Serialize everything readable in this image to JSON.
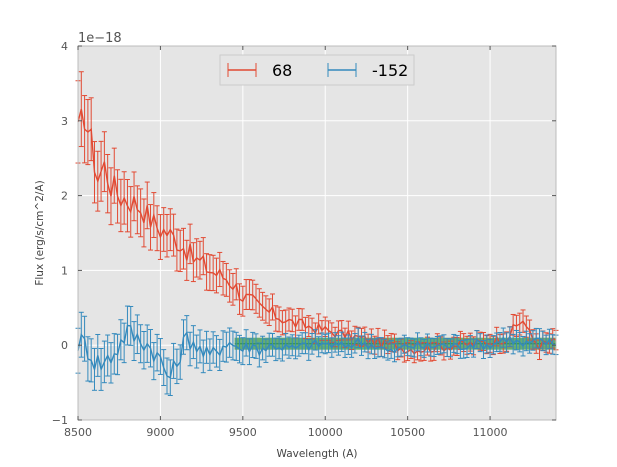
{
  "chart_data": {
    "type": "line",
    "title": "",
    "xlabel": "Wavelength (A)",
    "ylabel": "Flux (erg/s/cm^2/A)",
    "y_offset_label": "1e−18",
    "xlim": [
      8500,
      11400
    ],
    "ylim": [
      -1,
      4
    ],
    "xticks": [
      8500,
      9000,
      9500,
      10000,
      10500,
      11000
    ],
    "yticks": [
      -1,
      0,
      1,
      2,
      3,
      4
    ],
    "grid": true,
    "legend_position": "top-center",
    "background": "#e5e5e5",
    "band": {
      "x_start": 9450,
      "x_end": 11400,
      "y_low": -0.06,
      "y_high": 0.1,
      "color": "#3a9a4a",
      "line_color": "#2f8f4f"
    },
    "series": [
      {
        "name": "68",
        "color": "#e24a33",
        "knots": [
          [
            8500,
            2.75,
            0.55
          ],
          [
            8540,
            3.1,
            0.45
          ],
          [
            8580,
            2.7,
            0.42
          ],
          [
            8620,
            2.25,
            0.4
          ],
          [
            8660,
            2.4,
            0.4
          ],
          [
            8700,
            2.15,
            0.38
          ],
          [
            8750,
            2.0,
            0.35
          ],
          [
            8800,
            1.95,
            0.35
          ],
          [
            8850,
            1.9,
            0.32
          ],
          [
            8900,
            1.8,
            0.32
          ],
          [
            8950,
            1.65,
            0.3
          ],
          [
            9000,
            1.55,
            0.3
          ],
          [
            9050,
            1.5,
            0.28
          ],
          [
            9100,
            1.4,
            0.28
          ],
          [
            9150,
            1.3,
            0.27
          ],
          [
            9200,
            1.15,
            0.26
          ],
          [
            9250,
            1.1,
            0.25
          ],
          [
            9300,
            1.0,
            0.24
          ],
          [
            9350,
            0.95,
            0.23
          ],
          [
            9400,
            0.9,
            0.22
          ],
          [
            9450,
            0.8,
            0.21
          ],
          [
            9500,
            0.65,
            0.2
          ],
          [
            9550,
            0.6,
            0.2
          ],
          [
            9600,
            0.5,
            0.19
          ],
          [
            9650,
            0.45,
            0.18
          ],
          [
            9700,
            0.4,
            0.17
          ],
          [
            9750,
            0.35,
            0.16
          ],
          [
            9800,
            0.3,
            0.15
          ],
          [
            9900,
            0.25,
            0.14
          ],
          [
            10000,
            0.2,
            0.13
          ],
          [
            10100,
            0.15,
            0.13
          ],
          [
            10200,
            0.1,
            0.12
          ],
          [
            10300,
            0.05,
            0.12
          ],
          [
            10400,
            0.0,
            0.12
          ],
          [
            10500,
            -0.05,
            0.12
          ],
          [
            10600,
            -0.05,
            0.12
          ],
          [
            10700,
            -0.02,
            0.12
          ],
          [
            10800,
            0.0,
            0.12
          ],
          [
            10900,
            0.02,
            0.12
          ],
          [
            11000,
            0.05,
            0.12
          ],
          [
            11100,
            0.1,
            0.13
          ],
          [
            11200,
            0.35,
            0.15
          ],
          [
            11250,
            0.1,
            0.13
          ],
          [
            11300,
            0.0,
            0.13
          ],
          [
            11400,
            0.05,
            0.13
          ]
        ]
      },
      {
        "name": "-152",
        "color": "#348abd",
        "knots": [
          [
            8500,
            0.05,
            0.3
          ],
          [
            8550,
            0.0,
            0.3
          ],
          [
            8600,
            -0.2,
            0.28
          ],
          [
            8650,
            -0.25,
            0.28
          ],
          [
            8700,
            -0.15,
            0.27
          ],
          [
            8750,
            0.0,
            0.27
          ],
          [
            8800,
            0.2,
            0.26
          ],
          [
            8850,
            0.1,
            0.26
          ],
          [
            8900,
            0.05,
            0.25
          ],
          [
            8950,
            -0.05,
            0.25
          ],
          [
            9000,
            -0.2,
            0.24
          ],
          [
            9050,
            -0.45,
            0.24
          ],
          [
            9100,
            -0.25,
            0.23
          ],
          [
            9150,
            0.1,
            0.23
          ],
          [
            9200,
            0.05,
            0.22
          ],
          [
            9250,
            -0.1,
            0.22
          ],
          [
            9300,
            -0.15,
            0.21
          ],
          [
            9350,
            -0.05,
            0.21
          ],
          [
            9400,
            0.05,
            0.2
          ],
          [
            9450,
            0.0,
            0.19
          ],
          [
            9500,
            -0.05,
            0.18
          ],
          [
            9550,
            0.0,
            0.17
          ],
          [
            9600,
            -0.05,
            0.16
          ],
          [
            9700,
            0.0,
            0.15
          ],
          [
            9800,
            -0.05,
            0.14
          ],
          [
            9900,
            0.0,
            0.14
          ],
          [
            10000,
            0.02,
            0.13
          ],
          [
            10100,
            -0.02,
            0.13
          ],
          [
            10200,
            0.05,
            0.13
          ],
          [
            10300,
            0.0,
            0.13
          ],
          [
            10400,
            -0.1,
            0.12
          ],
          [
            10500,
            0.0,
            0.12
          ],
          [
            10600,
            -0.02,
            0.12
          ],
          [
            10700,
            0.0,
            0.12
          ],
          [
            10800,
            -0.02,
            0.12
          ],
          [
            10900,
            0.02,
            0.12
          ],
          [
            11000,
            0.0,
            0.12
          ],
          [
            11100,
            0.1,
            0.13
          ],
          [
            11200,
            0.0,
            0.13
          ],
          [
            11300,
            0.05,
            0.13
          ],
          [
            11400,
            0.02,
            0.13
          ]
        ]
      }
    ]
  }
}
